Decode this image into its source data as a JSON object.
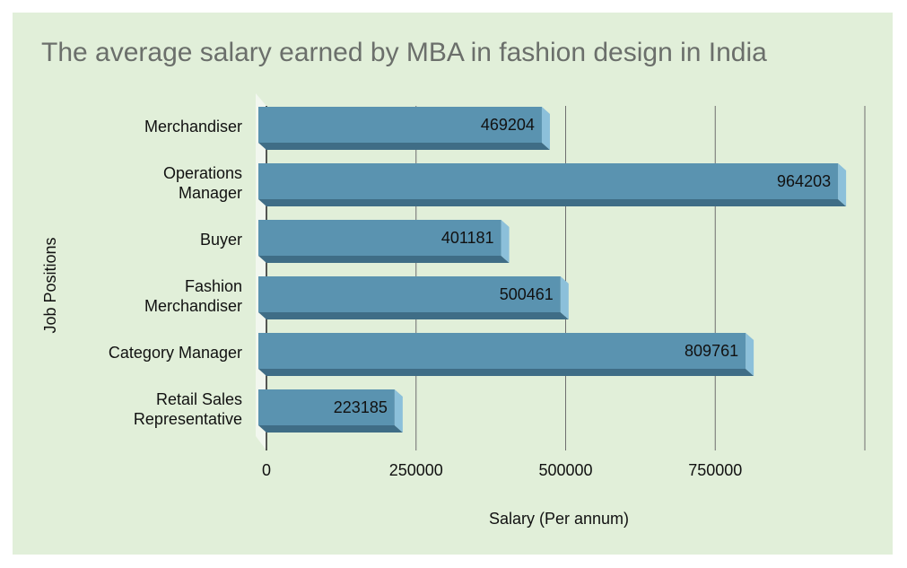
{
  "chart_data": {
    "type": "bar",
    "orientation": "horizontal",
    "title": "The average salary earned by MBA in fashion design in India",
    "xlabel": "Salary (Per annum)",
    "ylabel": "Job Positions",
    "categories": [
      "Merchandiser",
      "Operations Manager",
      "Buyer",
      "Fashion Merchandiser",
      "Category Manager",
      "Retail Sales Representative"
    ],
    "category_lines": [
      [
        "Merchandiser"
      ],
      [
        "Operations",
        "Manager"
      ],
      [
        "Buyer"
      ],
      [
        "Fashion",
        "Merchandiser"
      ],
      [
        "Category Manager"
      ],
      [
        "Retail Sales",
        "Representative"
      ]
    ],
    "values": [
      469204,
      964203,
      401181,
      500461,
      809761,
      223185
    ],
    "data_labels": [
      "469204",
      "964203",
      "401181",
      "500461",
      "809761",
      "223185"
    ],
    "xlim": [
      0,
      1000000
    ],
    "xticks": [
      0,
      250000,
      500000,
      750000
    ],
    "xtick_labels": [
      "0",
      "250000",
      "500000",
      "750000"
    ],
    "grid": true,
    "legend": "none",
    "colors": {
      "background": "#e1efd9",
      "bar_face": "#5a93b0",
      "bar_bottom": "#3f6d86",
      "bar_end": "#8cc0da",
      "grid": "#6f6f6f",
      "title": "#6b6f6b"
    }
  }
}
